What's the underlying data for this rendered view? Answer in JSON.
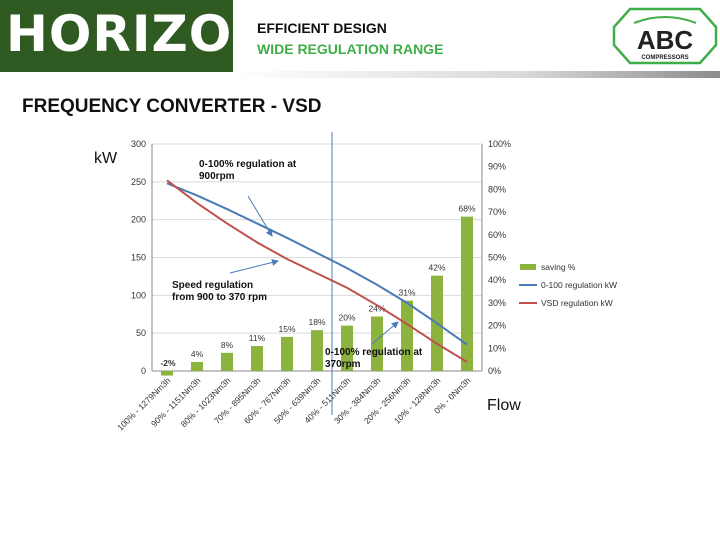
{
  "header": {
    "brand": "HORIZON",
    "tagline_1": "EFFICIENT DESIGN",
    "tagline_2": "WIDE REGULATION RANGE",
    "company_logo": {
      "name": "ABC",
      "sub": "COMPRESSORS"
    }
  },
  "page": {
    "title": "FREQUENCY CONVERTER - VSD",
    "left_unit": "kW",
    "bottom_unit": "Flow"
  },
  "colors": {
    "brand_green": "#2f5a22",
    "accent_green": "#3fae49",
    "bar": "#8db33f",
    "line_blue": "#4a7bb7",
    "line_red": "#c0504d"
  },
  "chart_data": {
    "type": "bar",
    "categories": [
      "100% - 1279Nm3h",
      "90% - 1151Nm3h",
      "80% - 1023Nm3h",
      "70% - 895Nm3h",
      "60% - 767Nm3h",
      "50% - 639Nm3h",
      "40% - 511Nm3h",
      "30% - 384Nm3h",
      "20% - 256Nm3h",
      "10% - 128Nm3h",
      "0% - 0Nm3h"
    ],
    "y_left": {
      "range": [
        0,
        300
      ],
      "ticks": [
        "0",
        "50",
        "100",
        "150",
        "200",
        "250",
        "300"
      ]
    },
    "y_right": {
      "range": [
        0,
        100
      ],
      "ticks": [
        "0%",
        "10%",
        "20%",
        "30%",
        "40%",
        "50%",
        "60%",
        "70%",
        "80%",
        "90%",
        "100%"
      ]
    },
    "series": [
      {
        "name": "saving %",
        "type": "bar",
        "axis": "right",
        "values": [
          -2,
          4,
          8,
          11,
          15,
          18,
          20,
          24,
          31,
          42,
          68
        ],
        "labels": [
          "-2%",
          "4%",
          "8%",
          "11%",
          "15%",
          "18%",
          "20%",
          "24%",
          "31%",
          "42%",
          "68%"
        ]
      },
      {
        "name": "0-100 regulation kW",
        "type": "line",
        "axis": "left",
        "values": [
          248,
          232,
          214,
          195,
          176,
          156,
          136,
          114,
          90,
          63,
          35
        ]
      },
      {
        "name": "VSD regulation kW",
        "type": "line",
        "axis": "left",
        "values": [
          252,
          222,
          195,
          170,
          148,
          129,
          110,
          87,
          62,
          36,
          12
        ]
      }
    ],
    "annotations": [
      {
        "text": [
          "0-100% regulation at",
          "900rpm"
        ]
      },
      {
        "text": [
          "Speed regulation",
          "from 900 to 370 rpm"
        ]
      },
      {
        "text": [
          "0-100% regulation at",
          "370rpm"
        ]
      }
    ],
    "legend_position": "right",
    "grid": true
  }
}
